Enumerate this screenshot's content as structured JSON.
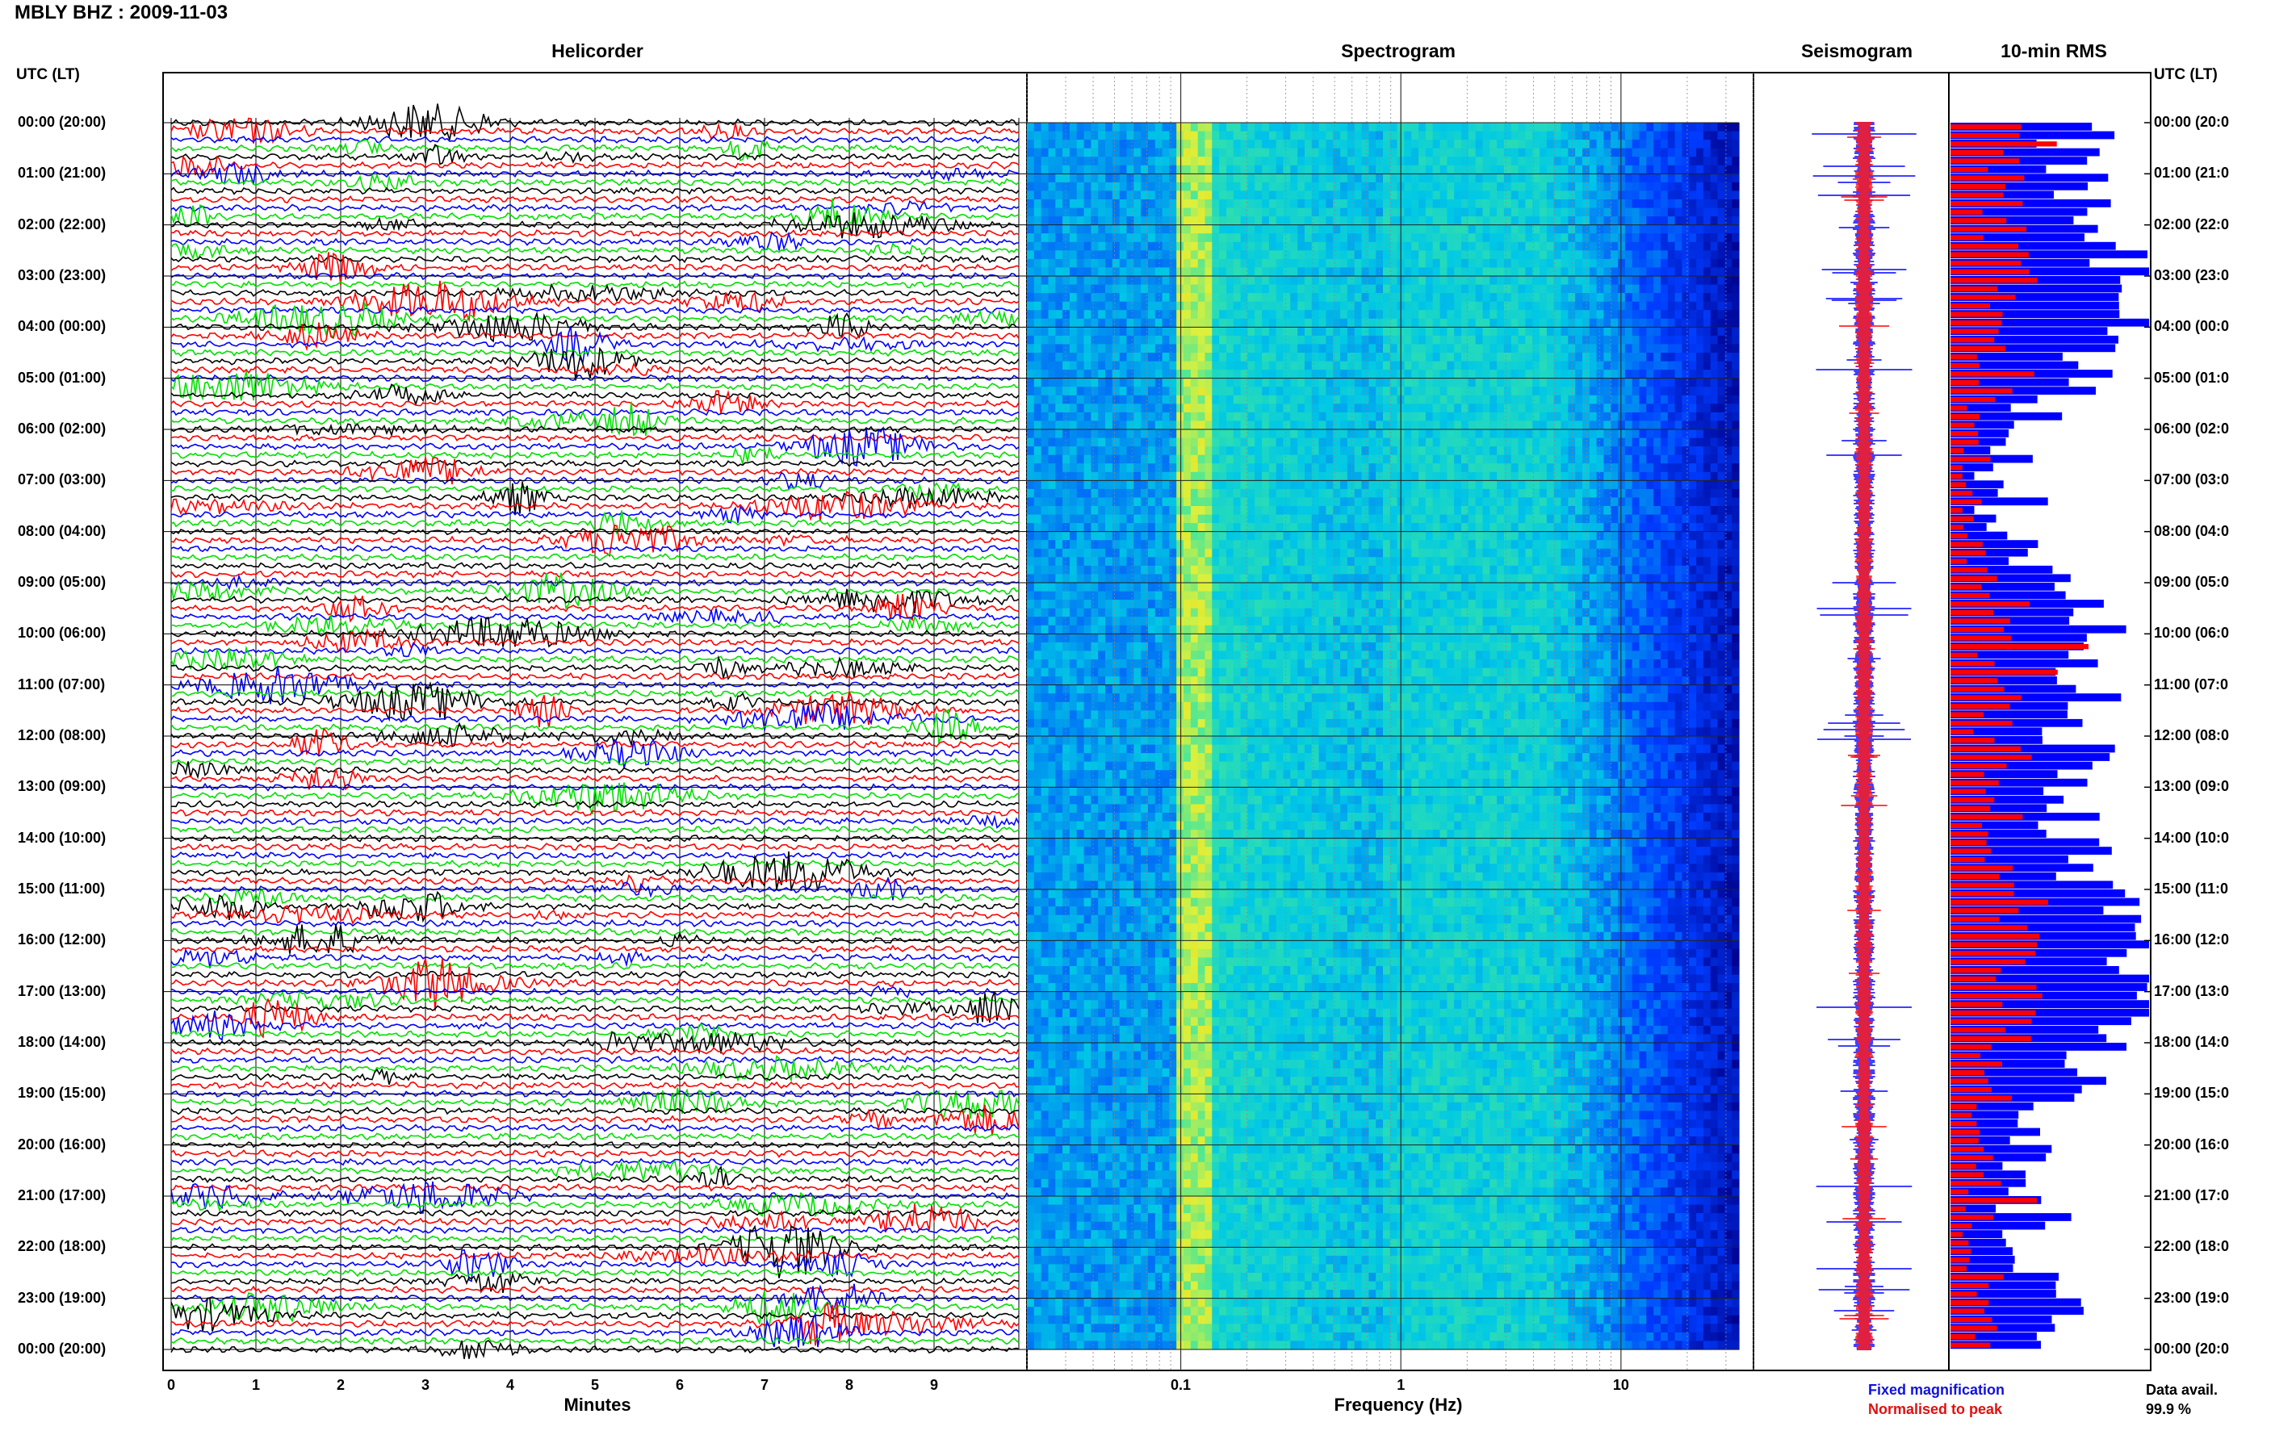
{
  "title": "MBLY BHZ : 2009-11-03",
  "panels": {
    "helicorder": "Helicorder",
    "spectrogram": "Spectrogram",
    "seismogram": "Seismogram",
    "rms": "10-min RMS"
  },
  "utc_label": "UTC (LT)",
  "hours": [
    "00:00 (20:00)",
    "01:00 (21:00)",
    "02:00 (22:00)",
    "03:00 (23:00)",
    "04:00 (00:00)",
    "05:00 (01:00)",
    "06:00 (02:00)",
    "07:00 (03:00)",
    "08:00 (04:00)",
    "09:00 (05:00)",
    "10:00 (06:00)",
    "11:00 (07:00)",
    "12:00 (08:00)",
    "13:00 (09:00)",
    "14:00 (10:00)",
    "15:00 (11:00)",
    "16:00 (12:00)",
    "17:00 (13:00)",
    "18:00 (14:00)",
    "19:00 (15:00)",
    "20:00 (16:00)",
    "21:00 (17:00)",
    "22:00 (18:00)",
    "23:00 (19:00)",
    "00:00 (20:00)"
  ],
  "hours_right": [
    "00:00 (20:0",
    "01:00 (21:0",
    "02:00 (22:0",
    "03:00 (23:0",
    "04:00 (00:0",
    "05:00 (01:0",
    "06:00 (02:0",
    "07:00 (03:0",
    "08:00 (04:0",
    "09:00 (05:0",
    "10:00 (06:0",
    "11:00 (07:0",
    "12:00 (08:0",
    "13:00 (09:0",
    "14:00 (10:0",
    "15:00 (11:0",
    "16:00 (12:0",
    "17:00 (13:0",
    "18:00 (14:0",
    "19:00 (15:0",
    "20:00 (16:0",
    "21:00 (17:0",
    "22:00 (18:0",
    "23:00 (19:0",
    "00:00 (20:0"
  ],
  "x_minutes_label": "Minutes",
  "x_freq_label": "Frequency (Hz)",
  "minute_ticks": [
    "0",
    "1",
    "2",
    "3",
    "4",
    "5",
    "6",
    "7",
    "8",
    "9"
  ],
  "freq_ticks": [
    "0.1",
    "1",
    "10"
  ],
  "legend": {
    "fixed": "Fixed magnification",
    "normalised": "Normalised to peak",
    "fixed_color": "#1010e0",
    "normalised_color": "#e01010"
  },
  "data_avail": {
    "label": "Data avail.",
    "value": "99.9 %"
  },
  "chart_data": [
    {
      "type": "line",
      "title": "Helicorder",
      "xlabel": "Minutes",
      "xlim": [
        0,
        10
      ],
      "trace_colors": [
        "#000000",
        "#ff0000",
        "#0000ff",
        "#00e000"
      ],
      "traces_per_hour": 6
    },
    {
      "type": "heatmap",
      "title": "Spectrogram",
      "xlabel": "Frequency (Hz)",
      "x_scale": "log",
      "xlim": [
        0.02,
        40
      ]
    },
    {
      "type": "line",
      "title": "Seismogram",
      "series": [
        {
          "name": "Fixed magnification",
          "color": "#0000ff"
        },
        {
          "name": "Normalised to peak",
          "color": "#ff0000"
        }
      ]
    },
    {
      "type": "bar",
      "title": "10-min RMS",
      "series": [
        {
          "name": "Fixed magnification",
          "color": "#0000ff"
        },
        {
          "name": "Normalised to peak",
          "color": "#ff0000"
        }
      ],
      "n_bars": 144
    }
  ]
}
